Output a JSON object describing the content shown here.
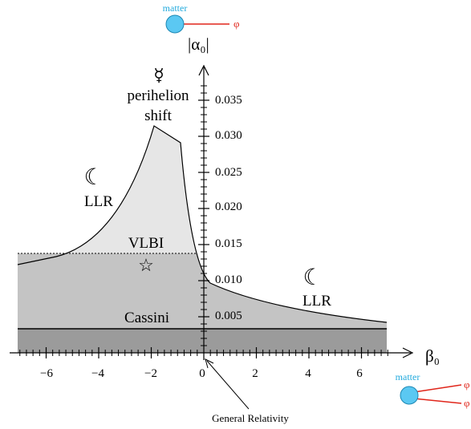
{
  "diagram": {
    "y_axis_label": "|α₀|",
    "x_axis_label": "β₀",
    "x_ticks": [
      "−6",
      "−4",
      "−2",
      "0",
      "2",
      "4",
      "6"
    ],
    "y_ticks": [
      "0.005",
      "0.010",
      "0.015",
      "0.020",
      "0.025",
      "0.030",
      "0.035"
    ],
    "labels": {
      "mercury_symbol": "☿",
      "perihelion_line1": "perihelion",
      "perihelion_line2": "shift",
      "moon_symbol": "☾",
      "llr": "LLR",
      "vlbi": "VLBI",
      "star_symbol": "☆",
      "cassini": "Cassini",
      "general_relativity": "General Relativity"
    },
    "diagram_top": {
      "matter": "matter",
      "phi": "φ"
    },
    "diagram_bottom": {
      "matter": "matter",
      "phi1": "φ",
      "phi2": "φ"
    },
    "colors": {
      "light_region": "#e6e6e6",
      "mid_region": "#c4c4c4",
      "dark_region": "#9b9b9b",
      "matter_ball": "#5bc8f2",
      "phi_line": "#e0261b",
      "matter_text": "#22aadd"
    }
  }
}
